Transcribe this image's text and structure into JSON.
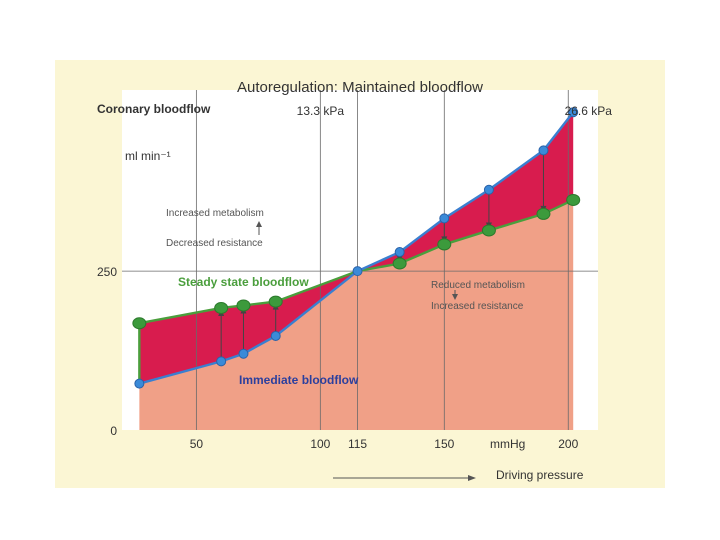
{
  "chart_data": {
    "type": "area",
    "title": "Autoregulation: Maintained bloodflow",
    "ylabel": "Coronary bloodflow",
    "yunit": "ml min⁻¹",
    "xunit": "mmHg",
    "xcaption": "Driving pressure",
    "pressure_ticks": [
      {
        "x": 100,
        "label": "13.3 kPa"
      },
      {
        "x": 200,
        "label": "26.6 kPa"
      }
    ],
    "x_ticks": [
      {
        "x": 50,
        "label": "50"
      },
      {
        "x": 100,
        "label": "100"
      },
      {
        "x": 115,
        "label": "115"
      },
      {
        "x": 150,
        "label": "150"
      },
      {
        "x": 200,
        "label": "200"
      }
    ],
    "y_ticks": [
      {
        "y": 0,
        "label": "0"
      },
      {
        "y": 250,
        "label": "250"
      }
    ],
    "xlim": [
      20,
      212
    ],
    "ylim": [
      0,
      535
    ],
    "grid_x": [
      50,
      100,
      115,
      150,
      200
    ],
    "grid_y": [
      250
    ],
    "series": [
      {
        "name": "Steady state bloodflow",
        "color": "#4a9e3c",
        "points": [
          [
            27,
            168
          ],
          [
            60,
            192
          ],
          [
            69,
            196
          ],
          [
            82,
            202
          ],
          [
            115,
            250
          ],
          [
            132,
            262
          ],
          [
            150,
            292
          ],
          [
            168,
            314
          ],
          [
            190,
            340
          ],
          [
            202,
            362
          ]
        ]
      },
      {
        "name": "Immediate bloodflow",
        "color": "#3a7fd0",
        "points": [
          [
            27,
            73
          ],
          [
            60,
            108
          ],
          [
            69,
            120
          ],
          [
            82,
            148
          ],
          [
            115,
            250
          ],
          [
            132,
            280
          ],
          [
            150,
            333
          ],
          [
            168,
            378
          ],
          [
            190,
            440
          ],
          [
            202,
            500
          ]
        ]
      }
    ],
    "annotations": {
      "upper_line1": "Increased metabolism",
      "upper_line2": "Decreased resistance",
      "lower_line1": "Reduced metabolism",
      "lower_line2": "Increased resistance"
    },
    "colors": {
      "background": "#fbf6d4",
      "plot_area": "#ffffff",
      "base_fill": "#f0a087",
      "difference_fill": "#d81c4e",
      "steady_marker": "#3c9a3c",
      "immediate_marker": "#3a8ad8",
      "grid": "#6a6a6a",
      "text": "#333333"
    }
  }
}
